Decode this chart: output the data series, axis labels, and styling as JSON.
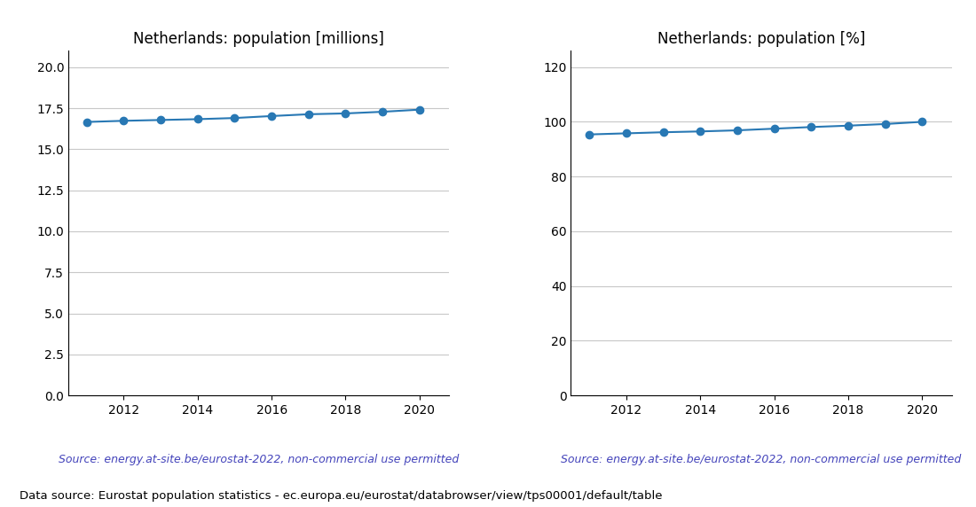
{
  "years": [
    2011,
    2012,
    2013,
    2014,
    2015,
    2016,
    2017,
    2018,
    2019,
    2020
  ],
  "pop_millions": [
    16.66,
    16.73,
    16.78,
    16.83,
    16.9,
    17.02,
    17.13,
    17.18,
    17.28,
    17.41
  ],
  "pop_percent": [
    95.4,
    95.8,
    96.2,
    96.5,
    96.9,
    97.5,
    98.1,
    98.6,
    99.2,
    100.0
  ],
  "title_millions": "Netherlands: population [millions]",
  "title_percent": "Netherlands: population [%]",
  "source_text": "Source: energy.at-site.be/eurostat-2022, non-commercial use permitted",
  "footer_text": "Data source: Eurostat population statistics - ec.europa.eu/eurostat/databrowser/view/tps00001/default/table",
  "line_color": "#2878b4",
  "source_color": "#4444bb",
  "ylim_millions": [
    0.0,
    21.0
  ],
  "yticks_millions": [
    0.0,
    2.5,
    5.0,
    7.5,
    10.0,
    12.5,
    15.0,
    17.5,
    20.0
  ],
  "ylim_percent": [
    0,
    126
  ],
  "yticks_percent": [
    0,
    20,
    40,
    60,
    80,
    100,
    120
  ],
  "grid_color": "#c8c8c8",
  "marker_size": 6,
  "title_fontsize": 12,
  "tick_fontsize": 10,
  "source_fontsize": 9,
  "footer_fontsize": 9.5
}
